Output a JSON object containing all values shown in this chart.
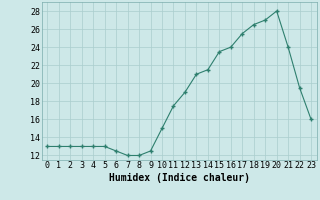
{
  "x": [
    0,
    1,
    2,
    3,
    4,
    5,
    6,
    7,
    8,
    9,
    10,
    11,
    12,
    13,
    14,
    15,
    16,
    17,
    18,
    19,
    20,
    21,
    22,
    23
  ],
  "y": [
    13,
    13,
    13,
    13,
    13,
    13,
    12.5,
    12,
    12,
    12.5,
    15,
    17.5,
    19,
    21,
    21.5,
    23.5,
    24,
    25.5,
    26.5,
    27,
    28,
    24,
    19.5,
    16
  ],
  "line_color": "#2e7f6e",
  "marker": "+",
  "marker_color": "#2e7f6e",
  "bg_color": "#cde8e8",
  "grid_color": "#aacece",
  "xlabel": "Humidex (Indice chaleur)",
  "xlim": [
    -0.5,
    23.5
  ],
  "ylim": [
    11.5,
    29.0
  ],
  "yticks": [
    12,
    14,
    16,
    18,
    20,
    22,
    24,
    26,
    28
  ],
  "xticks": [
    0,
    1,
    2,
    3,
    4,
    5,
    6,
    7,
    8,
    9,
    10,
    11,
    12,
    13,
    14,
    15,
    16,
    17,
    18,
    19,
    20,
    21,
    22,
    23
  ],
  "xtick_labels": [
    "0",
    "1",
    "2",
    "3",
    "4",
    "5",
    "6",
    "7",
    "8",
    "9",
    "10",
    "11",
    "12",
    "13",
    "14",
    "15",
    "16",
    "17",
    "18",
    "19",
    "20",
    "21",
    "22",
    "23"
  ],
  "tick_fontsize": 6,
  "xlabel_fontsize": 7,
  "linewidth": 0.8,
  "markersize": 3.5
}
